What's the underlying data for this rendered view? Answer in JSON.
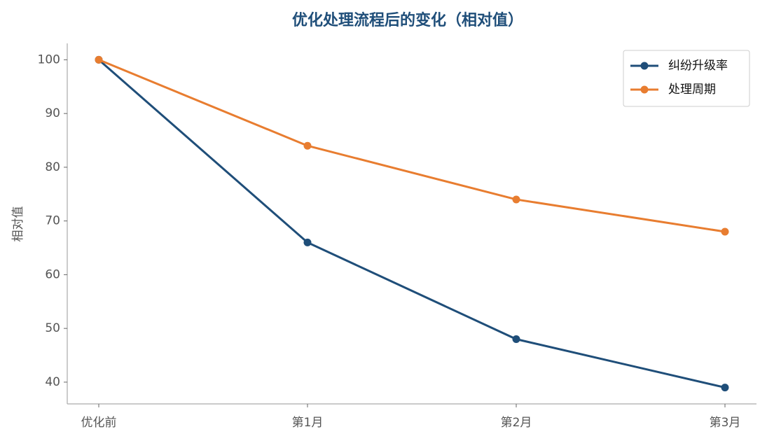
{
  "chart_data": {
    "type": "line",
    "title": "优化处理流程后的变化（相对值）",
    "y_label": "相对值",
    "categories": [
      "优化前",
      "第1月",
      "第2月",
      "第3月"
    ],
    "series": [
      {
        "name": "纠纷升级率",
        "color": "#1f4e79",
        "values": [
          100,
          66,
          48,
          39
        ]
      },
      {
        "name": "处理周期",
        "color": "#e87d30",
        "values": [
          100,
          84,
          74,
          68
        ]
      }
    ],
    "ylim": [
      35.95,
      103.05
    ],
    "yticks": [
      40,
      50,
      60,
      70,
      80,
      90,
      100
    ],
    "legend": "upper right"
  }
}
